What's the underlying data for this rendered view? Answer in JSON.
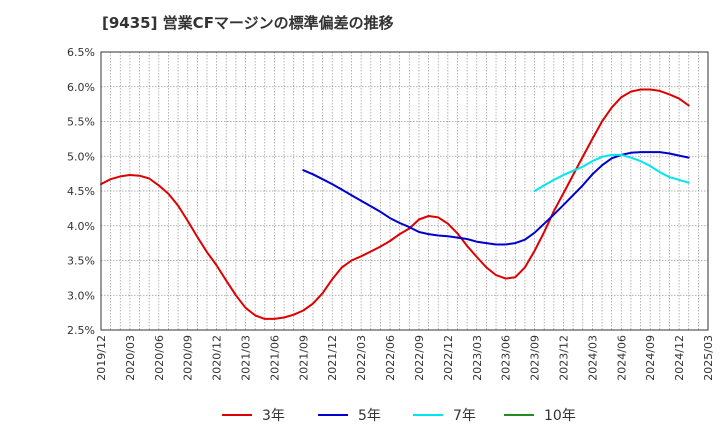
{
  "chart_data": {
    "type": "line",
    "title": "[9435]  営業CFマージンの標準偏差の推移",
    "x_tick_labels": [
      "2019/12",
      "2020/03",
      "2020/06",
      "2020/09",
      "2020/12",
      "2021/03",
      "2021/06",
      "2021/09",
      "2021/12",
      "2022/03",
      "2022/06",
      "2022/09",
      "2022/12",
      "2023/03",
      "2023/06",
      "2023/09",
      "2023/12",
      "2024/03",
      "2024/06",
      "2024/09",
      "2024/12",
      "2025/03"
    ],
    "y_tick_labels": [
      "2.5%",
      "3.0%",
      "3.5%",
      "4.0%",
      "4.5%",
      "5.0%",
      "5.5%",
      "6.0%",
      "6.5%"
    ],
    "ylim": [
      2.5,
      6.5
    ],
    "grid": true,
    "legend_position": "bottom",
    "series": [
      {
        "name": "3年",
        "color": "#dd0000",
        "points": [
          [
            "2019/12",
            4.6
          ],
          [
            "2020/01",
            4.67
          ],
          [
            "2020/02",
            4.71
          ],
          [
            "2020/03",
            4.73
          ],
          [
            "2020/04",
            4.72
          ],
          [
            "2020/05",
            4.68
          ],
          [
            "2020/06",
            4.58
          ],
          [
            "2020/07",
            4.46
          ],
          [
            "2020/08",
            4.29
          ],
          [
            "2020/09",
            4.07
          ],
          [
            "2020/10",
            3.84
          ],
          [
            "2020/11",
            3.62
          ],
          [
            "2020/12",
            3.43
          ],
          [
            "2021/01",
            3.21
          ],
          [
            "2021/02",
            3.0
          ],
          [
            "2021/03",
            2.82
          ],
          [
            "2021/04",
            2.71
          ],
          [
            "2021/05",
            2.66
          ],
          [
            "2021/06",
            2.66
          ],
          [
            "2021/07",
            2.68
          ],
          [
            "2021/08",
            2.72
          ],
          [
            "2021/09",
            2.78
          ],
          [
            "2021/10",
            2.88
          ],
          [
            "2021/11",
            3.03
          ],
          [
            "2021/12",
            3.23
          ],
          [
            "2022/01",
            3.4
          ],
          [
            "2022/02",
            3.5
          ],
          [
            "2022/03",
            3.56
          ],
          [
            "2022/04",
            3.63
          ],
          [
            "2022/05",
            3.7
          ],
          [
            "2022/06",
            3.78
          ],
          [
            "2022/07",
            3.88
          ],
          [
            "2022/08",
            3.96
          ],
          [
            "2022/09",
            4.09
          ],
          [
            "2022/10",
            4.14
          ],
          [
            "2022/11",
            4.12
          ],
          [
            "2022/12",
            4.03
          ],
          [
            "2023/01",
            3.89
          ],
          [
            "2023/02",
            3.71
          ],
          [
            "2023/03",
            3.55
          ],
          [
            "2023/04",
            3.4
          ],
          [
            "2023/05",
            3.29
          ],
          [
            "2023/06",
            3.24
          ],
          [
            "2023/07",
            3.26
          ],
          [
            "2023/08",
            3.4
          ],
          [
            "2023/09",
            3.64
          ],
          [
            "2023/10",
            3.91
          ],
          [
            "2023/11",
            4.21
          ],
          [
            "2023/12",
            4.47
          ],
          [
            "2024/01",
            4.73
          ],
          [
            "2024/02",
            4.99
          ],
          [
            "2024/03",
            5.25
          ],
          [
            "2024/04",
            5.5
          ],
          [
            "2024/05",
            5.7
          ],
          [
            "2024/06",
            5.85
          ],
          [
            "2024/07",
            5.93
          ],
          [
            "2024/08",
            5.96
          ],
          [
            "2024/09",
            5.96
          ],
          [
            "2024/10",
            5.94
          ],
          [
            "2024/11",
            5.89
          ],
          [
            "2024/12",
            5.83
          ],
          [
            "2025/01",
            5.73
          ]
        ]
      },
      {
        "name": "5年",
        "color": "#0000cc",
        "points": [
          [
            "2021/09",
            4.8
          ],
          [
            "2021/10",
            4.74
          ],
          [
            "2021/11",
            4.67
          ],
          [
            "2021/12",
            4.6
          ],
          [
            "2022/01",
            4.52
          ],
          [
            "2022/02",
            4.44
          ],
          [
            "2022/03",
            4.36
          ],
          [
            "2022/04",
            4.28
          ],
          [
            "2022/05",
            4.2
          ],
          [
            "2022/06",
            4.11
          ],
          [
            "2022/07",
            4.04
          ],
          [
            "2022/08",
            3.98
          ],
          [
            "2022/09",
            3.91
          ],
          [
            "2022/10",
            3.88
          ],
          [
            "2022/11",
            3.86
          ],
          [
            "2022/12",
            3.85
          ],
          [
            "2023/01",
            3.83
          ],
          [
            "2023/02",
            3.81
          ],
          [
            "2023/03",
            3.77
          ],
          [
            "2023/04",
            3.75
          ],
          [
            "2023/05",
            3.73
          ],
          [
            "2023/06",
            3.73
          ],
          [
            "2023/07",
            3.75
          ],
          [
            "2023/08",
            3.8
          ],
          [
            "2023/09",
            3.9
          ],
          [
            "2023/10",
            4.03
          ],
          [
            "2023/11",
            4.16
          ],
          [
            "2023/12",
            4.3
          ],
          [
            "2024/01",
            4.44
          ],
          [
            "2024/02",
            4.58
          ],
          [
            "2024/03",
            4.74
          ],
          [
            "2024/04",
            4.87
          ],
          [
            "2024/05",
            4.97
          ],
          [
            "2024/06",
            5.02
          ],
          [
            "2024/07",
            5.05
          ],
          [
            "2024/08",
            5.06
          ],
          [
            "2024/09",
            5.06
          ],
          [
            "2024/10",
            5.06
          ],
          [
            "2024/11",
            5.04
          ],
          [
            "2024/12",
            5.01
          ],
          [
            "2025/01",
            4.98
          ]
        ]
      },
      {
        "name": "7年",
        "color": "#00e5ee",
        "points": [
          [
            "2023/09",
            4.5
          ],
          [
            "2023/10",
            4.58
          ],
          [
            "2023/11",
            4.66
          ],
          [
            "2023/12",
            4.73
          ],
          [
            "2024/01",
            4.79
          ],
          [
            "2024/02",
            4.85
          ],
          [
            "2024/03",
            4.93
          ],
          [
            "2024/04",
            4.99
          ],
          [
            "2024/05",
            5.02
          ],
          [
            "2024/06",
            5.02
          ],
          [
            "2024/07",
            4.98
          ],
          [
            "2024/08",
            4.93
          ],
          [
            "2024/09",
            4.86
          ],
          [
            "2024/10",
            4.77
          ],
          [
            "2024/11",
            4.7
          ],
          [
            "2024/12",
            4.66
          ],
          [
            "2025/01",
            4.62
          ]
        ]
      },
      {
        "name": "10年",
        "color": "#228b22",
        "points": []
      }
    ]
  }
}
